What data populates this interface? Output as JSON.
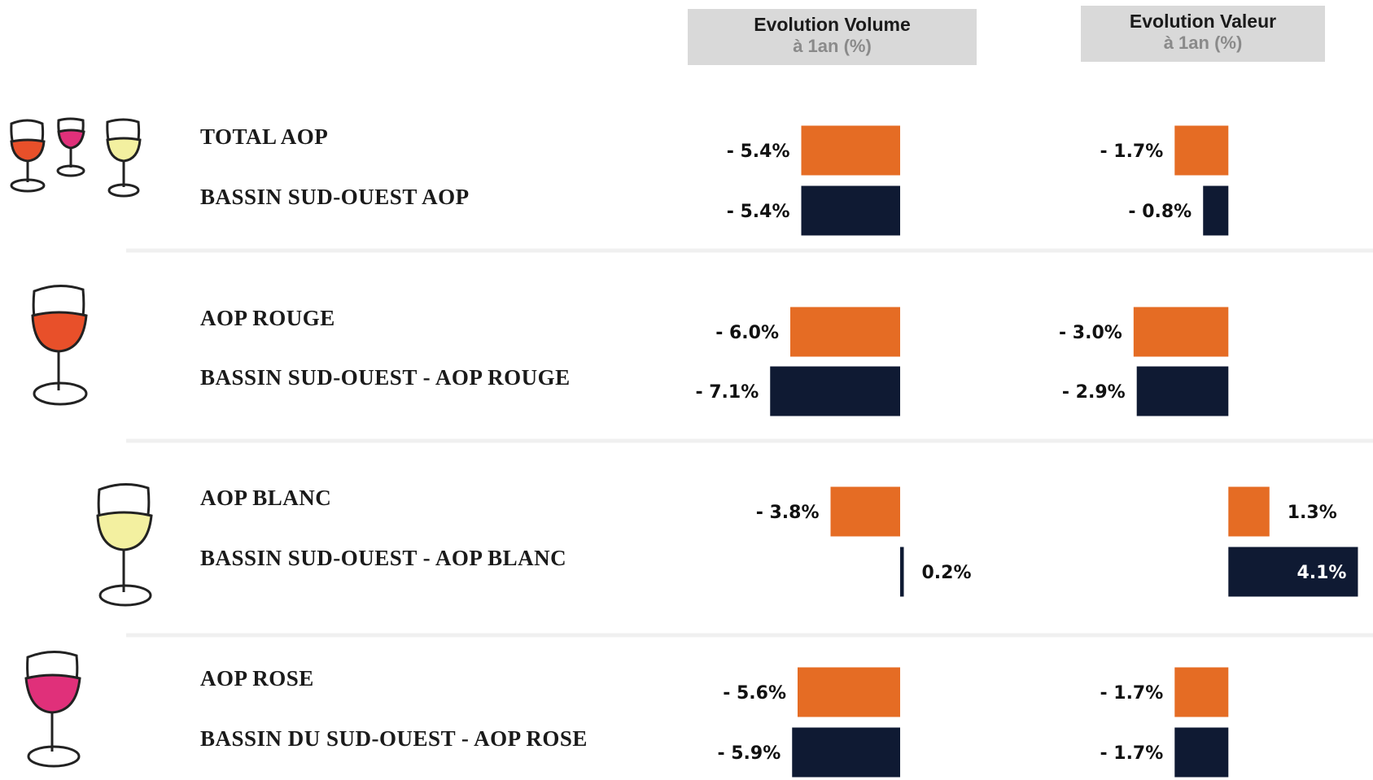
{
  "chart_data": {
    "type": "hbar-panels",
    "categories": [
      "TOTAL AOP",
      "BASSIN SUD-OUEST AOP",
      "AOP ROUGE",
      "BASSIN SUD-OUEST  -  AOP ROUGE",
      "AOP BLANC",
      "BASSIN SUD-OUEST - AOP BLANC",
      "AOP ROSE",
      "BASSIN DU SUD-OUEST - AOP ROSE"
    ],
    "colors": [
      "#e56c24",
      "#0f1a33",
      "#e56c24",
      "#0f1a33",
      "#e56c24",
      "#0f1a33",
      "#e56c24",
      "#0f1a33"
    ],
    "panels": [
      {
        "title": "Evolution Volume",
        "subtitle": "à 1an (%)",
        "xlim": [
          -8,
          4
        ],
        "values": [
          -5.4,
          -5.4,
          -6.0,
          -7.1,
          -3.8,
          0.2,
          -5.6,
          -5.9
        ],
        "value_labels": [
          "- 5.4%",
          "- 5.4%",
          "- 6.0%",
          "- 7.1%",
          "- 3.8%",
          "0.2%",
          "- 5.6%",
          "- 5.9%"
        ]
      },
      {
        "title": "Evolution Valeur",
        "subtitle": "à 1an (%)",
        "xlim": [
          -4,
          4.5
        ],
        "values": [
          -1.7,
          -0.8,
          -3.0,
          -2.9,
          1.3,
          4.1,
          -1.7,
          -1.7
        ],
        "value_labels": [
          "- 1.7%",
          "- 0.8%",
          "- 3.0%",
          "- 2.9%",
          "1.3%",
          "4.1%",
          "- 1.7%",
          "- 1.7%"
        ]
      }
    ]
  }
}
